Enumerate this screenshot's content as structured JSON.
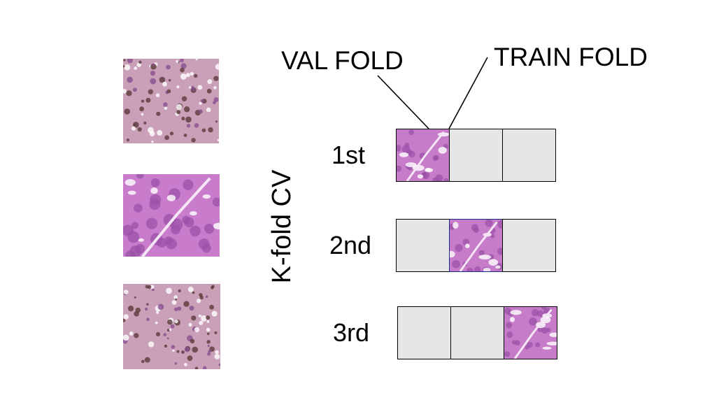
{
  "labels": {
    "val_fold": "VAL FOLD",
    "train_fold": "TRAIN FOLD",
    "kfold": "K-fold CV"
  },
  "rows": [
    {
      "label": "1st",
      "val_index": 0
    },
    {
      "label": "2nd",
      "val_index": 1
    },
    {
      "label": "3rd",
      "val_index": 2
    }
  ],
  "colors": {
    "train_cell": "#e6e6e6",
    "tissue_pink": "#c77cc9",
    "tissue_dark": "#7d3f8c"
  }
}
